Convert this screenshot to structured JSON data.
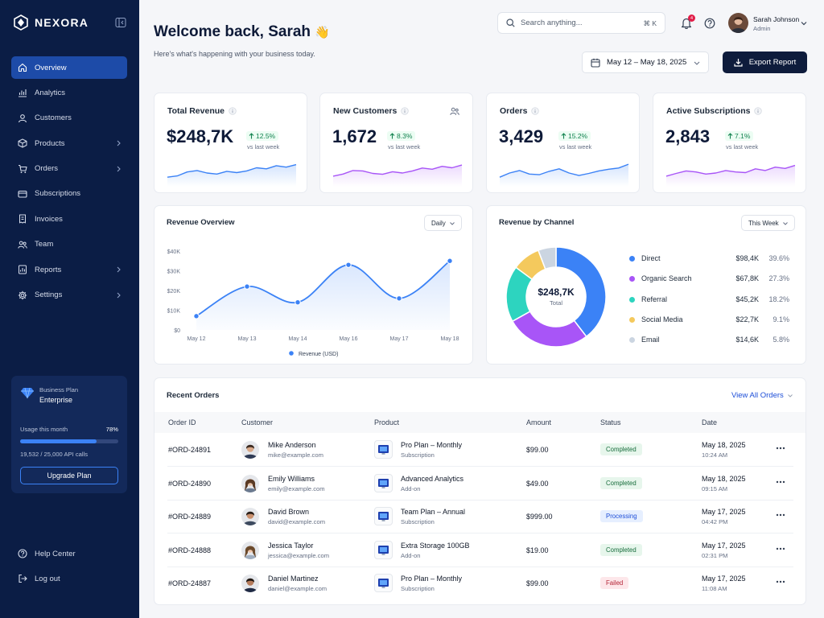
{
  "brand": {
    "name": "NEXORA"
  },
  "sidebar": {
    "items": [
      {
        "label": "Overview",
        "icon": "home-icon",
        "active": true
      },
      {
        "label": "Analytics",
        "icon": "chart-icon"
      },
      {
        "label": "Customers",
        "icon": "users-icon"
      },
      {
        "label": "Products",
        "icon": "box-icon",
        "has_children": true
      },
      {
        "label": "Orders",
        "icon": "cart-icon",
        "has_children": true
      },
      {
        "label": "Subscriptions",
        "icon": "card-icon"
      },
      {
        "label": "Invoices",
        "icon": "invoice-icon"
      },
      {
        "label": "Team",
        "icon": "team-icon"
      },
      {
        "label": "Reports",
        "icon": "report-icon",
        "has_children": true
      },
      {
        "label": "Settings",
        "icon": "gear-icon",
        "has_children": true
      }
    ],
    "bottom": [
      {
        "label": "Help Center",
        "icon": "help-icon"
      },
      {
        "label": "Log out",
        "icon": "logout-icon"
      }
    ]
  },
  "plan": {
    "name": "Business Plan",
    "tier": "Enterprise",
    "usage_label": "Usage this month",
    "usage_percent_text": "78%",
    "usage_fraction": 0.78,
    "usage_calls": "19,532 / 25,000 API calls",
    "upgrade_label": "Upgrade Plan"
  },
  "header": {
    "title": "Welcome back, Sarah",
    "emoji": "👋",
    "subtitle": "Here's what's happening with your business today.",
    "search_placeholder": "Search anything...",
    "search_shortcut": "⌘ K",
    "notification_count": "4",
    "user_name": "Sarah Johnson",
    "user_role": "Admin",
    "date_range": "May 12 – May 18, 2025",
    "export_label": "Export Report"
  },
  "kpis": [
    {
      "title": "Total Revenue",
      "value": "$248,7K",
      "delta": "12.5%",
      "vs": "vs last week",
      "color": "#3b82f6",
      "spark": [
        0.3,
        0.36,
        0.55,
        0.62,
        0.5,
        0.45,
        0.58,
        0.52,
        0.6,
        0.75,
        0.7,
        0.85,
        0.78,
        0.9
      ]
    },
    {
      "title": "New Customers",
      "value": "1,672",
      "delta": "8.3%",
      "vs": "vs last week",
      "color": "#a855f7",
      "spark": [
        0.35,
        0.45,
        0.62,
        0.6,
        0.48,
        0.44,
        0.56,
        0.5,
        0.6,
        0.74,
        0.68,
        0.82,
        0.75,
        0.88
      ]
    },
    {
      "title": "Orders",
      "value": "3,429",
      "delta": "15.2%",
      "vs": "vs last week",
      "color": "#3b82f6",
      "spark": [
        0.3,
        0.5,
        0.62,
        0.45,
        0.42,
        0.58,
        0.7,
        0.5,
        0.38,
        0.48,
        0.6,
        0.68,
        0.74,
        0.92
      ]
    },
    {
      "title": "Active Subscriptions",
      "value": "2,843",
      "delta": "7.1%",
      "vs": "vs last week",
      "color": "#a855f7",
      "spark": [
        0.35,
        0.48,
        0.6,
        0.55,
        0.45,
        0.5,
        0.62,
        0.55,
        0.52,
        0.7,
        0.62,
        0.78,
        0.72,
        0.86
      ]
    }
  ],
  "revenue_overview": {
    "title": "Revenue Overview",
    "period": "Daily",
    "legend": "Revenue (USD)"
  },
  "channels": {
    "title": "Revenue by Channel",
    "period": "This Week",
    "center_value": "$248,7K",
    "center_label": "Total"
  },
  "chart_data": [
    {
      "type": "line",
      "title": "Revenue Overview",
      "x": [
        "May 12",
        "May 13",
        "May 14",
        "May 16",
        "May 17",
        "May 18"
      ],
      "yticks": [
        "$0",
        "$10K",
        "$20K",
        "$30K",
        "$40K"
      ],
      "ylim": [
        0,
        40000
      ],
      "series": [
        {
          "name": "Revenue (USD)",
          "values": [
            7000,
            22000,
            14000,
            33000,
            16000,
            35000
          ],
          "color": "#3b82f6"
        }
      ],
      "legend": "bottom",
      "grid": false
    },
    {
      "type": "pie",
      "title": "Revenue by Channel",
      "labels": [
        "Direct",
        "Organic Search",
        "Referral",
        "Social Media",
        "Email"
      ],
      "display_values": [
        "$98,4K",
        "$67,8K",
        "$45,2K",
        "$22,7K",
        "$14,6K"
      ],
      "percent_labels": [
        "39.6%",
        "27.3%",
        "18.2%",
        "9.1%",
        "5.8%"
      ],
      "values": [
        39.6,
        27.3,
        18.2,
        9.1,
        5.8
      ],
      "colors": [
        "#3b82f6",
        "#a855f7",
        "#2dd4bf",
        "#f4c95d",
        "#cbd5e1"
      ],
      "legend": "right"
    }
  ],
  "orders": {
    "title": "Recent Orders",
    "view_all": "View All Orders",
    "columns": [
      "Order ID",
      "Customer",
      "Product",
      "Amount",
      "Status",
      "Date"
    ],
    "rows": [
      {
        "id": "#ORD-24891",
        "name": "Mike Anderson",
        "email": "mike@example.com",
        "product": "Pro Plan – Monthly",
        "ptype": "Subscription",
        "amount": "$99.00",
        "status": "Completed",
        "date": "May 18, 2025",
        "time": "10:24 AM"
      },
      {
        "id": "#ORD-24890",
        "name": "Emily Williams",
        "email": "emily@example.com",
        "product": "Advanced Analytics",
        "ptype": "Add-on",
        "amount": "$49.00",
        "status": "Completed",
        "date": "May 18, 2025",
        "time": "09:15 AM"
      },
      {
        "id": "#ORD-24889",
        "name": "David Brown",
        "email": "david@example.com",
        "product": "Team Plan – Annual",
        "ptype": "Subscription",
        "amount": "$999.00",
        "status": "Processing",
        "date": "May 17, 2025",
        "time": "04:42 PM"
      },
      {
        "id": "#ORD-24888",
        "name": "Jessica Taylor",
        "email": "jessica@example.com",
        "product": "Extra Storage 100GB",
        "ptype": "Add-on",
        "amount": "$19.00",
        "status": "Completed",
        "date": "May 17, 2025",
        "time": "02:31 PM"
      },
      {
        "id": "#ORD-24887",
        "name": "Daniel Martinez",
        "email": "daniel@example.com",
        "product": "Pro Plan – Monthly",
        "ptype": "Subscription",
        "amount": "$99.00",
        "status": "Failed",
        "date": "May 17, 2025",
        "time": "11:08 AM"
      }
    ]
  }
}
